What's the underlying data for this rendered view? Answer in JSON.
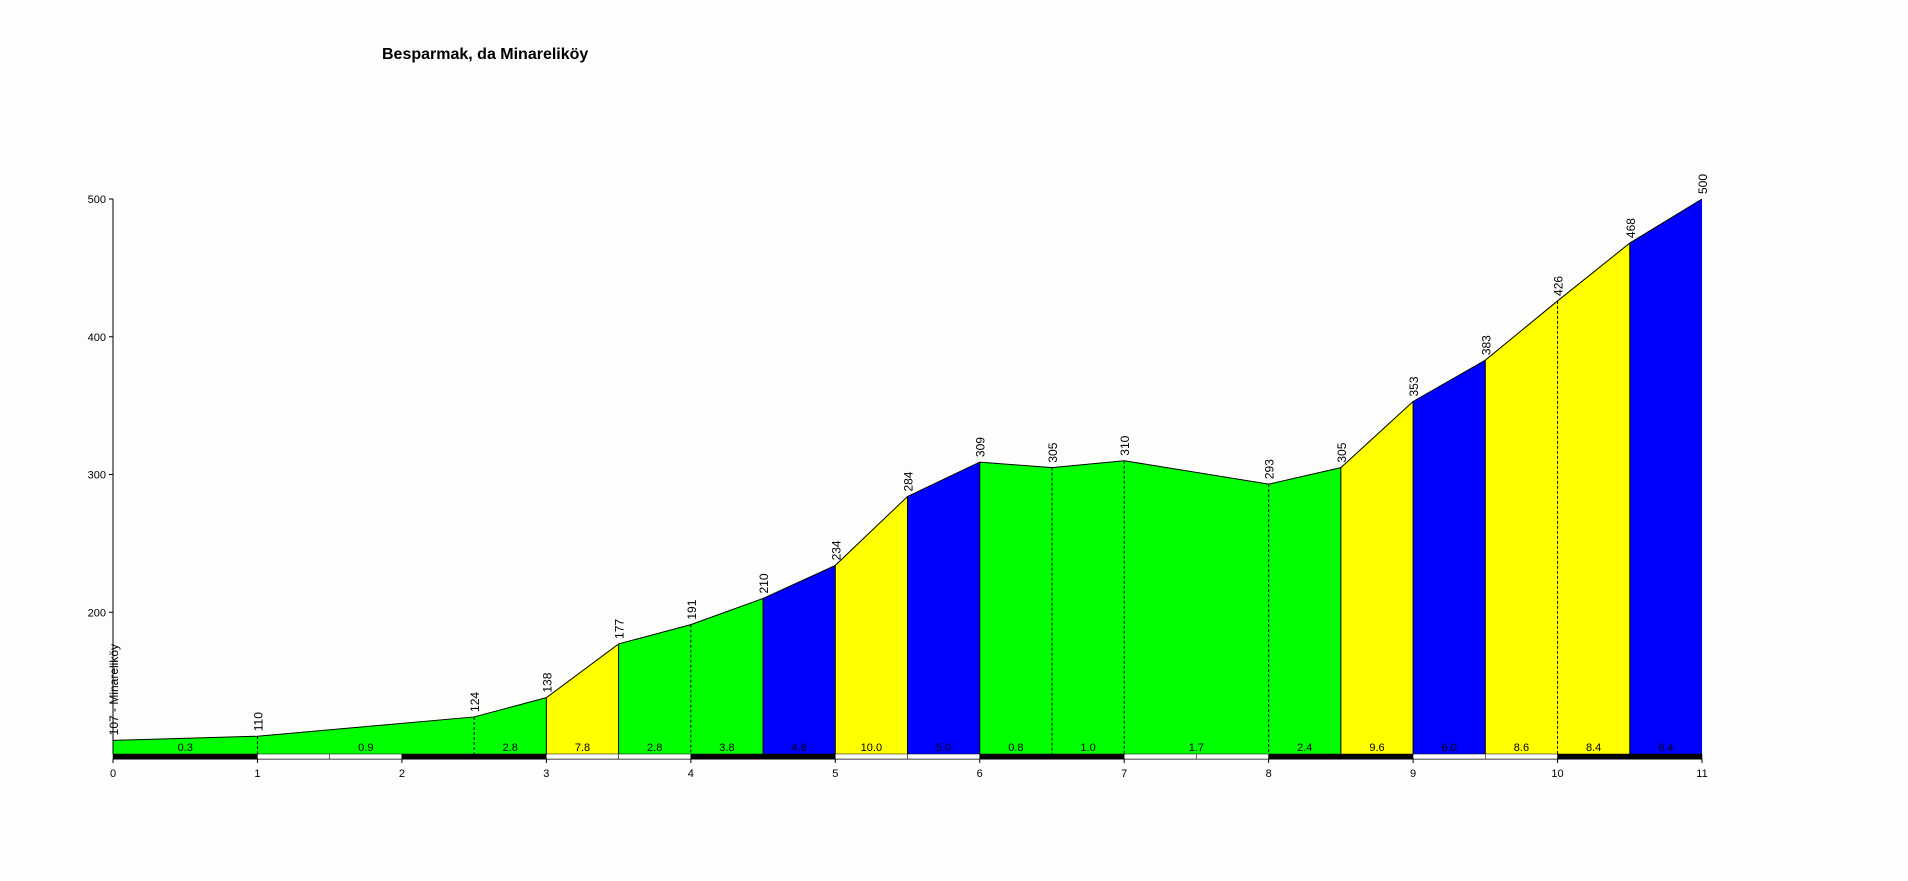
{
  "chart_data": {
    "type": "area",
    "title": "Besparmak, da Minareliköy",
    "xlabel": "",
    "ylabel": "",
    "xlim": [
      0,
      11
    ],
    "ylim": [
      100,
      500
    ],
    "y_ticks": [
      200,
      300,
      400,
      500
    ],
    "x_ticks": [
      0,
      1,
      2,
      3,
      4,
      5,
      6,
      7,
      8,
      9,
      10,
      11
    ],
    "start_label": "107 - Minareliköy",
    "points": [
      {
        "x": 0,
        "y": 107
      },
      {
        "x": 1,
        "y": 110
      },
      {
        "x": 2.5,
        "y": 124
      },
      {
        "x": 3,
        "y": 138
      },
      {
        "x": 3.5,
        "y": 177
      },
      {
        "x": 4,
        "y": 191
      },
      {
        "x": 4.5,
        "y": 210
      },
      {
        "x": 5,
        "y": 234
      },
      {
        "x": 5.5,
        "y": 284
      },
      {
        "x": 6,
        "y": 309
      },
      {
        "x": 6.5,
        "y": 305
      },
      {
        "x": 7,
        "y": 310
      },
      {
        "x": 8,
        "y": 293
      },
      {
        "x": 8.5,
        "y": 305
      },
      {
        "x": 9,
        "y": 353
      },
      {
        "x": 9.5,
        "y": 383
      },
      {
        "x": 10,
        "y": 426
      },
      {
        "x": 10.5,
        "y": 468
      },
      {
        "x": 11,
        "y": 500
      }
    ],
    "segments": [
      {
        "start": 0,
        "end": 1,
        "grade": "0.3",
        "color": "#00ff00"
      },
      {
        "start": 1,
        "end": 2.5,
        "grade": "0.9",
        "color": "#00ff00"
      },
      {
        "start": 2.5,
        "end": 3,
        "grade": "2.8",
        "color": "#00ff00"
      },
      {
        "start": 3,
        "end": 3.5,
        "grade": "7.8",
        "color": "#ffff00"
      },
      {
        "start": 3.5,
        "end": 4,
        "grade": "2.8",
        "color": "#00ff00"
      },
      {
        "start": 4,
        "end": 4.5,
        "grade": "3.8",
        "color": "#00ff00"
      },
      {
        "start": 4.5,
        "end": 5,
        "grade": "4.8",
        "color": "#0000ff"
      },
      {
        "start": 5,
        "end": 5.5,
        "grade": "10.0",
        "color": "#ffff00"
      },
      {
        "start": 5.5,
        "end": 6,
        "grade": "5.0",
        "color": "#0000ff"
      },
      {
        "start": 6,
        "end": 6.5,
        "grade": "0.8",
        "color": "#00ff00"
      },
      {
        "start": 6.5,
        "end": 7,
        "grade": "1.0",
        "color": "#00ff00"
      },
      {
        "start": 7,
        "end": 8,
        "grade": "1.7",
        "color": "#00ff00"
      },
      {
        "start": 8,
        "end": 8.5,
        "grade": "2.4",
        "color": "#00ff00"
      },
      {
        "start": 8.5,
        "end": 9,
        "grade": "9.6",
        "color": "#ffff00"
      },
      {
        "start": 9,
        "end": 9.5,
        "grade": "6.0",
        "color": "#0000ff"
      },
      {
        "start": 9.5,
        "end": 10,
        "grade": "8.6",
        "color": "#ffff00"
      },
      {
        "start": 10,
        "end": 10.5,
        "grade": "8.4",
        "color": "#ffff00"
      },
      {
        "start": 10.5,
        "end": 11,
        "grade": "6.4",
        "color": "#0000ff"
      }
    ]
  }
}
